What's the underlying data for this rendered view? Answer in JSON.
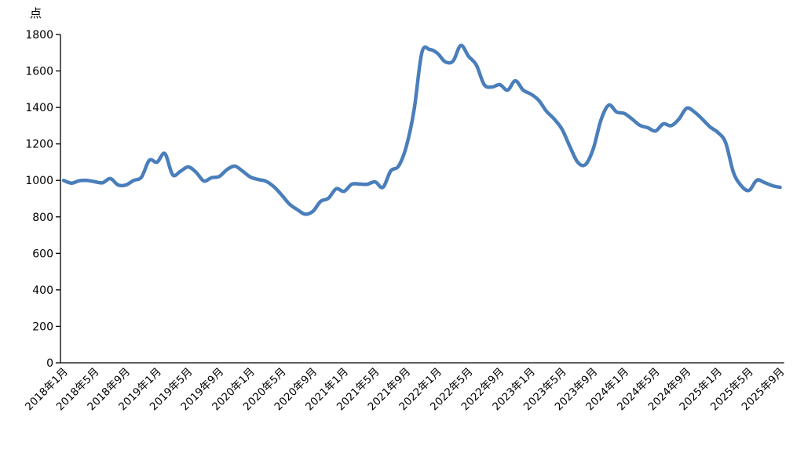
{
  "chart_data": {
    "type": "line",
    "title": "",
    "ylabel": "点",
    "xlabel": "",
    "ylim": [
      0,
      1800
    ],
    "yticks": [
      0,
      200,
      400,
      600,
      800,
      1000,
      1200,
      1400,
      1600,
      1800
    ],
    "grid": false,
    "line_color": "#4a7ebb",
    "x_tick_labels": [
      "2018年1月",
      "2018年5月",
      "2018年9月",
      "2019年1月",
      "2019年5月",
      "2019年9月",
      "2020年1月",
      "2020年5月",
      "2020年9月",
      "2021年1月",
      "2021年5月",
      "2021年9月",
      "2022年1月",
      "2022年5月",
      "2022年9月",
      "2023年1月",
      "2023年5月",
      "2023年9月",
      "2024年1月",
      "2024年5月",
      "2024年9月",
      "2025年1月",
      "2025年5月",
      "2025年9月"
    ],
    "x_start": "2018年1月",
    "x_end": "2025年9月",
    "frequency": "monthly",
    "series": [
      {
        "values": [
          1000,
          985,
          998,
          1000,
          993,
          987,
          1010,
          975,
          975,
          1000,
          1018,
          1110,
          1100,
          1147,
          1031,
          1050,
          1074,
          1045,
          997,
          1015,
          1022,
          1060,
          1078,
          1050,
          1018,
          1005,
          995,
          965,
          920,
          870,
          840,
          815,
          830,
          885,
          902,
          954,
          940,
          979,
          980,
          979,
          992,
          962,
          1052,
          1078,
          1186,
          1387,
          1701,
          1718,
          1697,
          1650,
          1654,
          1740,
          1680,
          1632,
          1525,
          1512,
          1525,
          1495,
          1546,
          1495,
          1473,
          1439,
          1379,
          1336,
          1280,
          1186,
          1100,
          1087,
          1173,
          1332,
          1413,
          1375,
          1367,
          1336,
          1302,
          1289,
          1271,
          1310,
          1300,
          1336,
          1396,
          1375,
          1336,
          1293,
          1263,
          1207,
          1044,
          971,
          945,
          1001,
          988,
          971,
          962
        ]
      }
    ]
  }
}
